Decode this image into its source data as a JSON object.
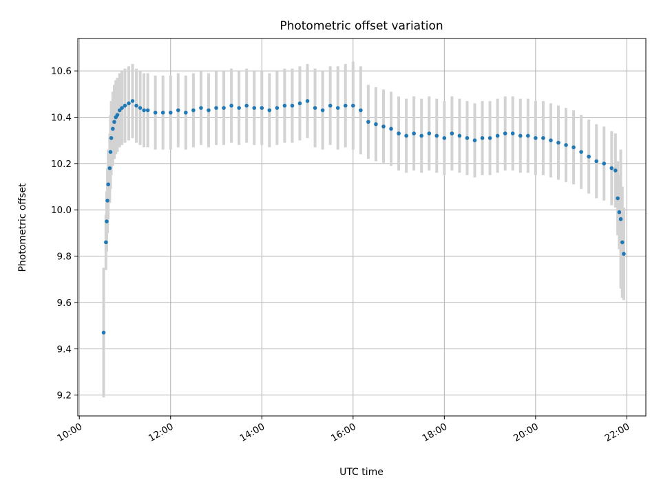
{
  "chart_data": {
    "type": "scatter",
    "title": "Photometric offset variation",
    "xlabel": "UTC time",
    "ylabel": "Photometric offset",
    "xlim": [
      "09:58",
      "22:25"
    ],
    "ylim": [
      9.11,
      10.74
    ],
    "x_ticks": [
      "10:00",
      "12:00",
      "14:00",
      "16:00",
      "18:00",
      "20:00",
      "22:00"
    ],
    "y_ticks": [
      9.2,
      9.4,
      9.6,
      9.8,
      10.0,
      10.2,
      10.4,
      10.6
    ],
    "grid": true,
    "colors": {
      "points": "#1f77b4",
      "error_bars": "#d3d3d3",
      "grid": "#b0b0b0"
    },
    "series": [
      {
        "x": [
          "10:32",
          "10:35",
          "10:36",
          "10:37",
          "10:38",
          "10:40",
          "10:41",
          "10:42",
          "10:44",
          "10:46",
          "10:48",
          "10:50",
          "10:53",
          "10:56",
          "11:00",
          "11:05",
          "11:10",
          "11:15",
          "11:20",
          "11:25",
          "11:30",
          "11:40",
          "11:50",
          "12:00",
          "12:10",
          "12:20",
          "12:30",
          "12:40",
          "12:50",
          "13:00",
          "13:10",
          "13:20",
          "13:30",
          "13:40",
          "13:50",
          "14:00",
          "14:10",
          "14:20",
          "14:30",
          "14:40",
          "14:50",
          "15:00",
          "15:10",
          "15:20",
          "15:30",
          "15:40",
          "15:50",
          "16:00",
          "16:10",
          "16:20",
          "16:30",
          "16:40",
          "16:50",
          "17:00",
          "17:10",
          "17:20",
          "17:30",
          "17:40",
          "17:50",
          "18:00",
          "18:10",
          "18:20",
          "18:30",
          "18:40",
          "18:50",
          "19:00",
          "19:10",
          "19:20",
          "19:30",
          "19:40",
          "19:50",
          "20:00",
          "20:10",
          "20:20",
          "20:30",
          "20:40",
          "20:50",
          "21:00",
          "21:10",
          "21:20",
          "21:30",
          "21:40",
          "21:45",
          "21:48",
          "21:50",
          "21:52",
          "21:54",
          "21:56"
        ],
        "y": [
          9.47,
          9.86,
          9.95,
          10.04,
          10.11,
          10.18,
          10.25,
          10.31,
          10.35,
          10.38,
          10.4,
          10.41,
          10.43,
          10.44,
          10.45,
          10.46,
          10.47,
          10.45,
          10.44,
          10.43,
          10.43,
          10.42,
          10.42,
          10.42,
          10.43,
          10.42,
          10.43,
          10.44,
          10.43,
          10.44,
          10.44,
          10.45,
          10.44,
          10.45,
          10.44,
          10.44,
          10.43,
          10.44,
          10.45,
          10.45,
          10.46,
          10.47,
          10.44,
          10.43,
          10.45,
          10.44,
          10.45,
          10.45,
          10.43,
          10.38,
          10.37,
          10.36,
          10.35,
          10.33,
          10.32,
          10.33,
          10.32,
          10.33,
          10.32,
          10.31,
          10.33,
          10.32,
          10.31,
          10.3,
          10.31,
          10.31,
          10.32,
          10.33,
          10.33,
          10.32,
          10.32,
          10.31,
          10.31,
          10.3,
          10.29,
          10.28,
          10.27,
          10.25,
          10.23,
          10.21,
          10.2,
          10.18,
          10.17,
          10.05,
          9.99,
          9.96,
          9.86,
          9.81
        ],
        "error": [
          0.28,
          0.12,
          0.13,
          0.14,
          0.15,
          0.15,
          0.16,
          0.16,
          0.16,
          0.16,
          0.16,
          0.16,
          0.16,
          0.16,
          0.16,
          0.16,
          0.16,
          0.16,
          0.16,
          0.16,
          0.16,
          0.16,
          0.16,
          0.16,
          0.16,
          0.16,
          0.16,
          0.16,
          0.16,
          0.16,
          0.16,
          0.16,
          0.16,
          0.16,
          0.16,
          0.16,
          0.16,
          0.16,
          0.16,
          0.16,
          0.16,
          0.16,
          0.17,
          0.17,
          0.17,
          0.18,
          0.18,
          0.19,
          0.19,
          0.16,
          0.16,
          0.16,
          0.16,
          0.16,
          0.16,
          0.16,
          0.16,
          0.16,
          0.16,
          0.16,
          0.16,
          0.16,
          0.16,
          0.16,
          0.16,
          0.16,
          0.16,
          0.16,
          0.16,
          0.16,
          0.16,
          0.16,
          0.16,
          0.16,
          0.16,
          0.16,
          0.16,
          0.16,
          0.16,
          0.16,
          0.16,
          0.16,
          0.16,
          0.16,
          0.16,
          0.3,
          0.24,
          0.2
        ]
      }
    ]
  }
}
